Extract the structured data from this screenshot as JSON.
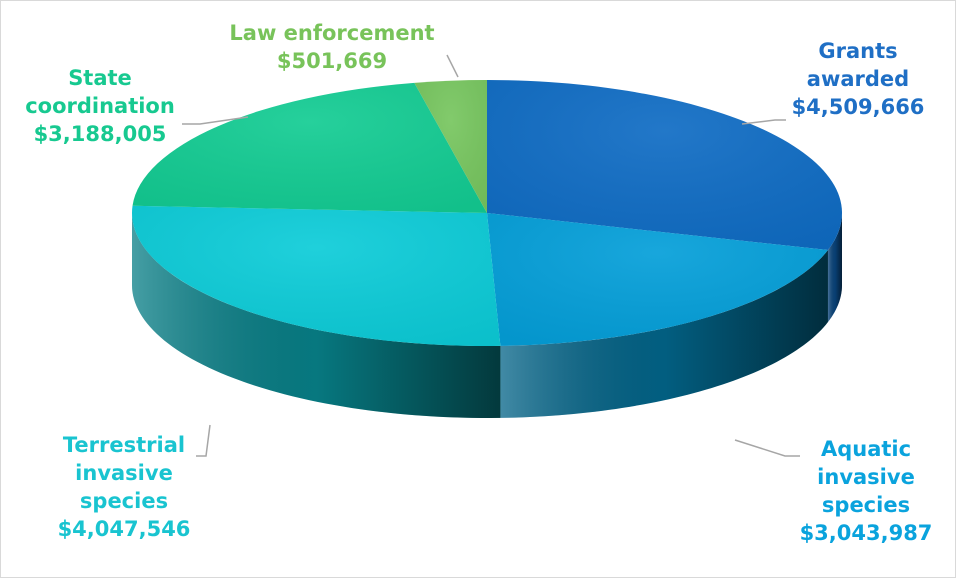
{
  "chart_data": {
    "type": "pie",
    "style": "3d",
    "start_angle_degrees": 0,
    "direction": "clockwise",
    "slices": [
      {
        "label": [
          "Grants",
          "awarded"
        ],
        "value": 4509666,
        "value_text": "$4,509,666",
        "color": "#0f6cc4",
        "label_color": "#1f6fc5"
      },
      {
        "label": [
          "Aquatic",
          "invasive",
          "species"
        ],
        "value": 3043987,
        "value_text": "$3,043,987",
        "color": "#049fd9",
        "label_color": "#0aa3dd"
      },
      {
        "label": [
          "Terrestrial",
          "invasive",
          "species"
        ],
        "value": 4047546,
        "value_text": "$4,047,546",
        "color": "#0cccd8",
        "label_color": "#19c4d0"
      },
      {
        "label": [
          "State",
          "coordination"
        ],
        "value": 3188005,
        "value_text": "$3,188,005",
        "color": "#13cc93",
        "label_color": "#17c990"
      },
      {
        "label": [
          "Law enforcement"
        ],
        "value": 501669,
        "value_text": "$501,669",
        "color": "#77c65f",
        "label_color": "#78c35a"
      }
    ],
    "title": "",
    "legend": "none"
  }
}
